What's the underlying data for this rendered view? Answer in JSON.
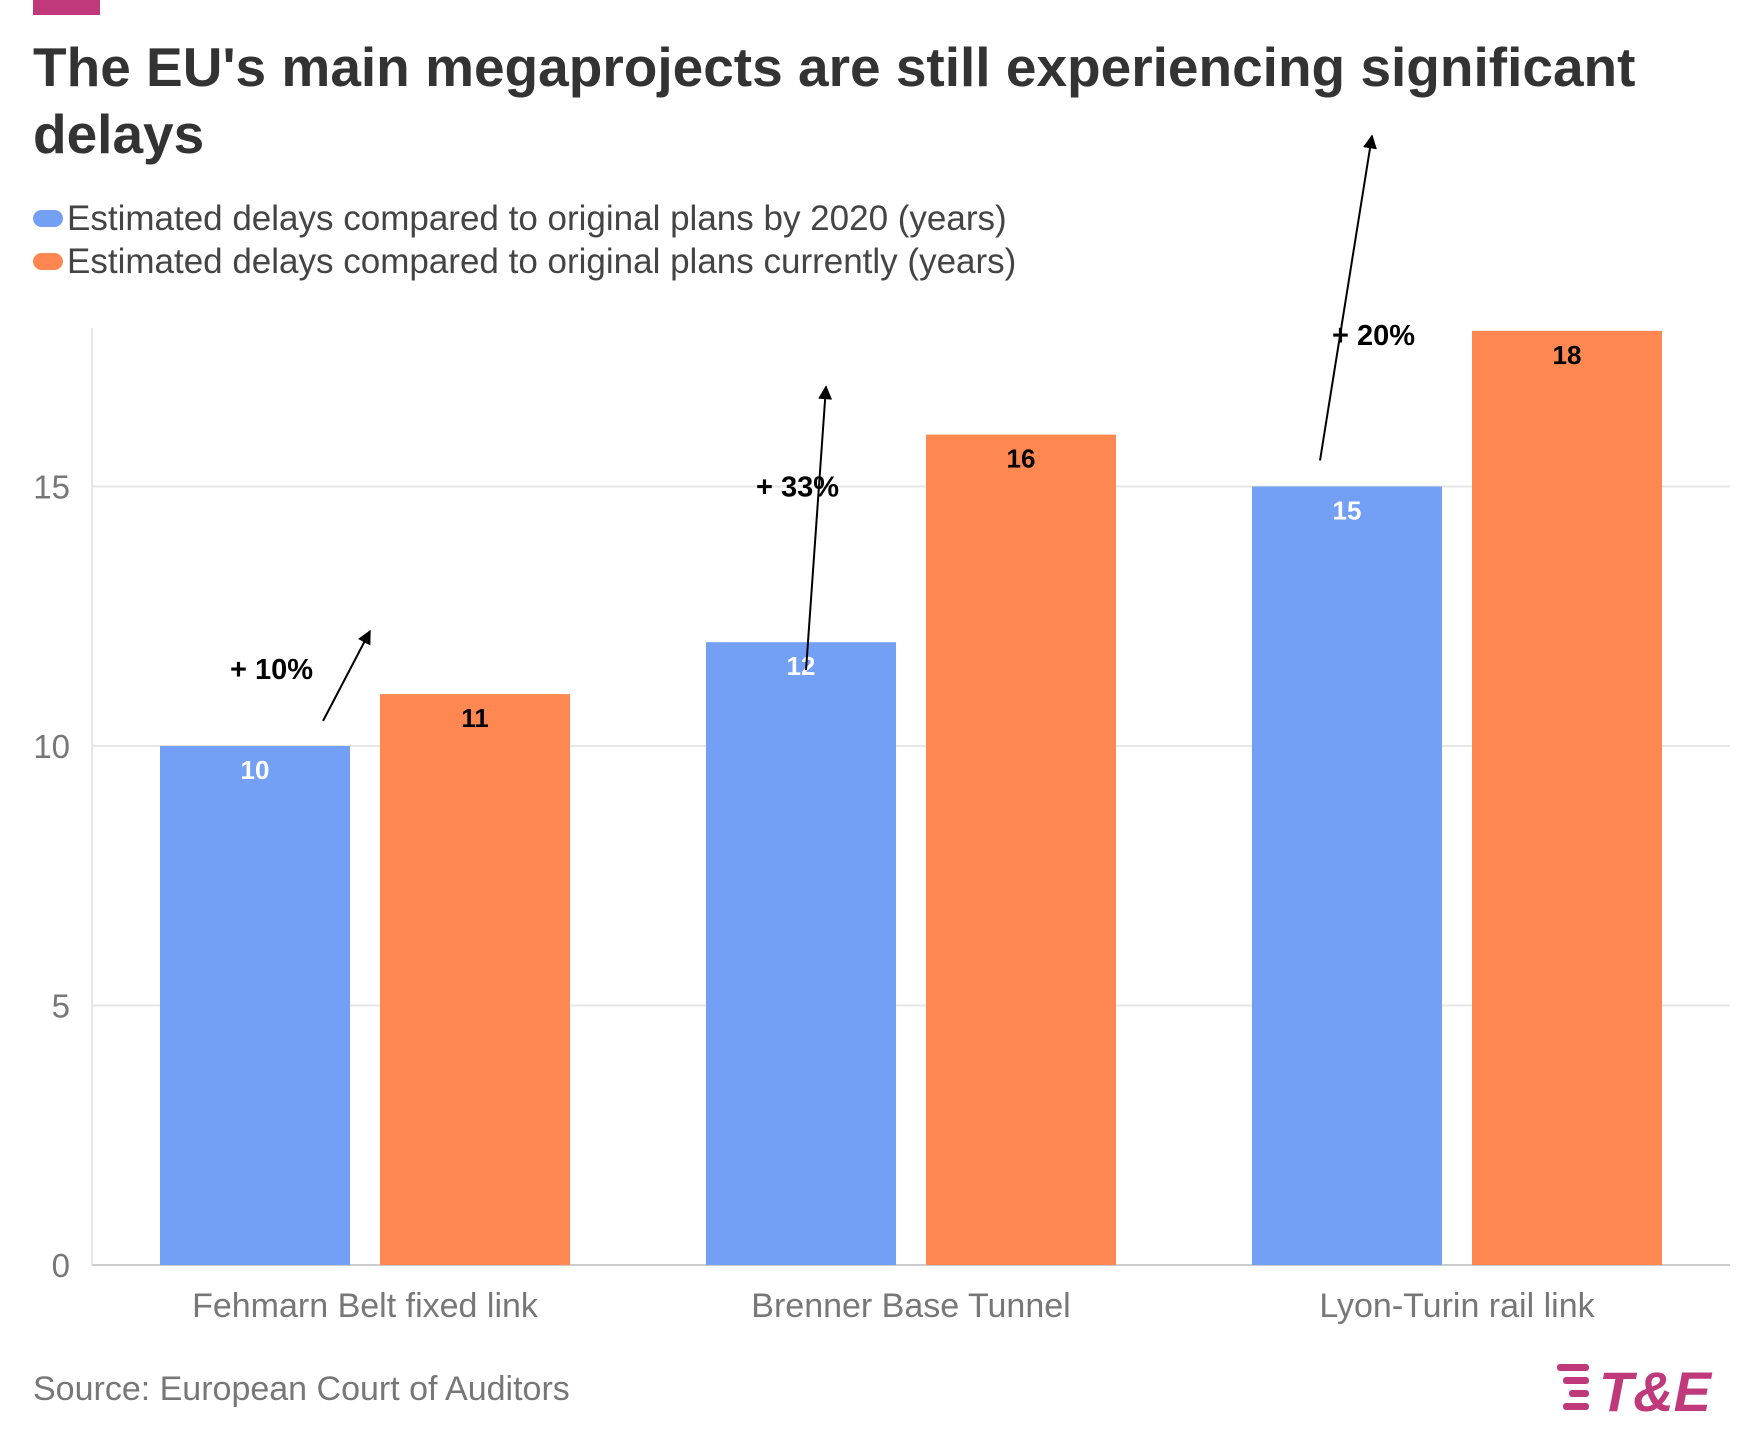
{
  "title": "The EU's main megaprojects are still experiencing significant delays",
  "source": "Source: European Court of Auditors",
  "logo_text": "T&E",
  "colors": {
    "accent": "#c03a7b",
    "series_2020": "#739ff4",
    "series_current": "#ff8852",
    "grid": "#e6e6e6",
    "axis_text": "#777777",
    "arrow": "#000000"
  },
  "chart_data": {
    "type": "bar",
    "categories": [
      "Fehmarn Belt fixed link",
      "Brenner Base Tunnel",
      "Lyon-Turin rail link"
    ],
    "series": [
      {
        "name": "Estimated delays compared to original plans by 2020 (years)",
        "values": [
          10,
          12,
          15
        ]
      },
      {
        "name": "Estimated delays compared to original plans currently (years)",
        "values": [
          11,
          16,
          18
        ]
      }
    ],
    "ylim": [
      0,
      18
    ],
    "yticks": [
      0,
      5,
      10,
      15
    ],
    "grid": true,
    "legend_position": "top-left",
    "annotations": [
      "+ 10%",
      "+ 33%",
      "+ 20%"
    ]
  }
}
